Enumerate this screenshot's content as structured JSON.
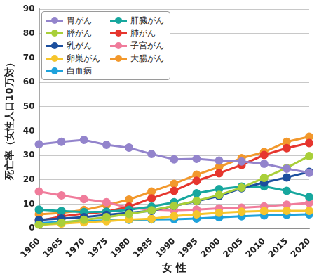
{
  "chart_data": {
    "type": "line",
    "x_label": "女 性",
    "y_label": "死亡率（女性人口10万対）",
    "categories": [
      "1960",
      "1965",
      "1970",
      "1975",
      "1980",
      "1985",
      "1990",
      "1995",
      "2000",
      "2005",
      "2010",
      "2015",
      "2020"
    ],
    "ylim": [
      0,
      90
    ],
    "yticks": [
      0,
      10,
      20,
      30,
      40,
      50,
      60,
      70,
      80,
      90
    ],
    "grid": true,
    "legend": "upper left",
    "marker": "circle",
    "series": [
      {
        "name": "胃がん",
        "color": "#9384cc",
        "values": [
          34.6,
          35.6,
          36.4,
          34.4,
          33.2,
          30.6,
          28.4,
          28.6,
          27.9,
          27.5,
          26.6,
          24.6,
          22.9
        ]
      },
      {
        "name": "膵がん",
        "color": "#a9cf3a",
        "values": [
          1.5,
          2.4,
          3.6,
          4.7,
          6.0,
          7.5,
          9.3,
          11.4,
          13.8,
          16.8,
          20.8,
          24.9,
          29.8
        ]
      },
      {
        "name": "乳がん",
        "color": "#1c4f9e",
        "values": [
          3.6,
          4.1,
          4.7,
          5.6,
          6.5,
          7.3,
          9.3,
          11.2,
          13.3,
          16.6,
          18.9,
          21.0,
          23.3
        ]
      },
      {
        "name": "卵巣がん",
        "color": "#f6c52c",
        "values": [
          1.5,
          2.0,
          2.6,
          3.0,
          3.7,
          4.0,
          5.1,
          5.8,
          6.5,
          6.9,
          7.2,
          7.3,
          7.3
        ]
      },
      {
        "name": "白血病",
        "color": "#1ea2dc",
        "values": [
          2.2,
          2.7,
          3.1,
          3.3,
          3.6,
          3.7,
          3.8,
          4.1,
          4.6,
          5.0,
          5.4,
          5.6,
          5.8
        ]
      },
      {
        "name": "肝臓がん",
        "color": "#17a79e",
        "values": [
          7.8,
          7.2,
          6.8,
          6.9,
          7.7,
          9.0,
          10.8,
          14.5,
          16.2,
          17.2,
          17.3,
          15.5,
          13.0
        ]
      },
      {
        "name": "肺がん",
        "color": "#e6362e",
        "values": [
          3.2,
          5.0,
          6.1,
          6.9,
          9.0,
          12.4,
          15.5,
          19.6,
          22.7,
          26.1,
          30.2,
          33.0,
          35.1
        ]
      },
      {
        "name": "子宮がん",
        "color": "#f07c9b",
        "values": [
          15.2,
          13.6,
          12.1,
          10.8,
          8.5,
          7.8,
          7.5,
          7.8,
          8.3,
          8.6,
          9.1,
          9.8,
          10.5
        ]
      },
      {
        "name": "大腸がん",
        "color": "#f2982c",
        "values": [
          5.8,
          6.4,
          7.6,
          9.6,
          11.9,
          15.2,
          18.4,
          22.1,
          25.3,
          28.9,
          31.4,
          35.6,
          37.7
        ]
      }
    ]
  }
}
